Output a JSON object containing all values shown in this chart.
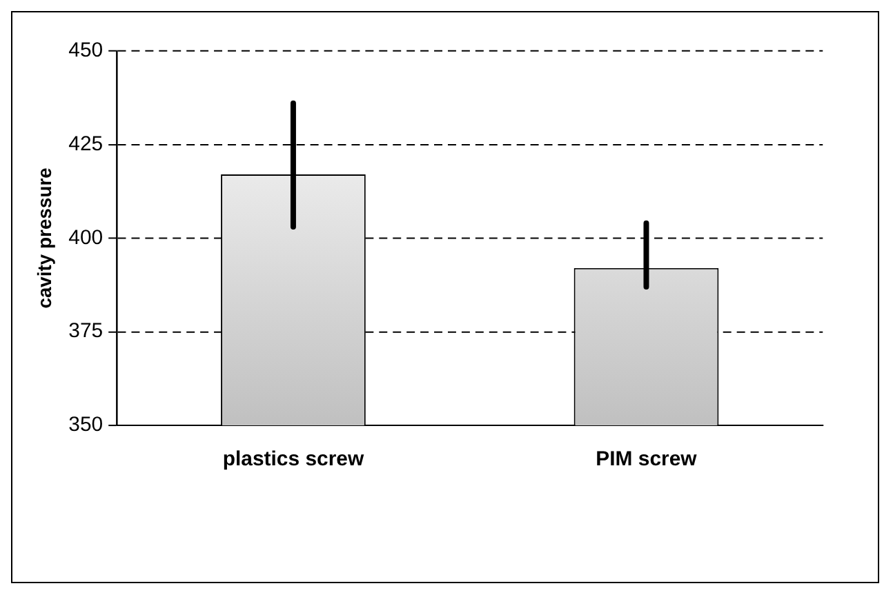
{
  "chart_data": {
    "type": "bar",
    "ylabel": "cavity pressure",
    "categories": [
      "plastics screw",
      "PIM screw"
    ],
    "values": [
      417,
      392
    ],
    "color": "#c0c0c0",
    "errors": [
      [
        403,
        436
      ],
      [
        387,
        404
      ]
    ],
    "ylim": [
      350,
      450
    ],
    "yticks": [
      350,
      375,
      400,
      425,
      450
    ],
    "grid": "y",
    "legend": false
  }
}
